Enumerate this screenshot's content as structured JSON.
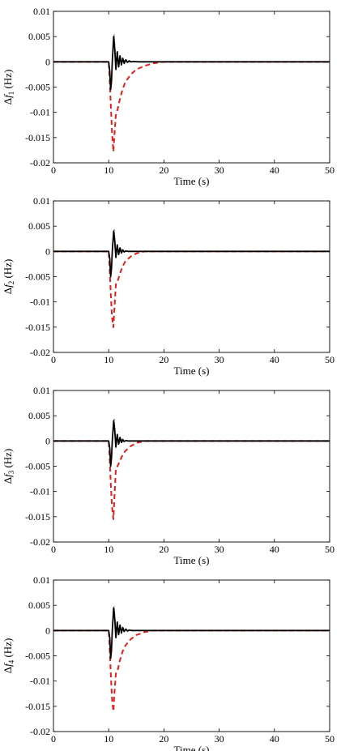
{
  "chart_data": [
    {
      "type": "line",
      "xlabel": "Time (s)",
      "ylabel": {
        "pre": "Δ",
        "var": "f",
        "sub": "1",
        "post": " (Hz)"
      },
      "xlim": [
        0,
        50
      ],
      "ylim": [
        -0.02,
        0.01
      ],
      "xticks": [
        "0",
        "10",
        "20",
        "30",
        "40",
        "50"
      ],
      "yticks": [
        "0.01",
        "0.005",
        "0",
        "-0.005",
        "-0.01",
        "-0.015",
        "-0.02"
      ],
      "grid": false,
      "series": [
        {
          "style": "solid",
          "color": "#000000",
          "x": [
            0,
            10.0,
            10.2,
            10.35,
            10.5,
            10.65,
            10.9,
            11.1,
            11.3,
            11.55,
            11.8,
            12.05,
            12.3,
            12.55,
            12.8,
            13.1,
            13.4,
            13.7,
            14.0,
            14.5,
            15.5,
            50
          ],
          "y": [
            0,
            0,
            -0.002,
            -0.0055,
            -0.004,
            0,
            0.005,
            0.0025,
            -0.0015,
            0.002,
            -0.001,
            0.0012,
            -0.0006,
            0.0007,
            -0.0003,
            0.0004,
            -0.0001,
            0.0002,
            0,
            5e-05,
            0,
            0
          ]
        },
        {
          "style": "dashed",
          "color": "#e0201b",
          "x": [
            0,
            10.0,
            10.2,
            10.4,
            10.6,
            10.85,
            11.0,
            11.3,
            11.6,
            12.0,
            12.5,
            13.0,
            14.0,
            15.0,
            16.5,
            18.0,
            20.0,
            50
          ],
          "y": [
            0,
            0,
            -0.004,
            -0.009,
            -0.014,
            -0.0178,
            -0.015,
            -0.0105,
            -0.0095,
            -0.0075,
            -0.0055,
            -0.004,
            -0.0025,
            -0.0015,
            -0.0008,
            -0.0003,
            0,
            0
          ]
        },
        {
          "style": "dotted",
          "color": "#555555",
          "x": [
            0,
            10.0,
            10.2,
            10.4,
            10.6,
            10.8,
            11.0,
            11.25,
            11.5,
            11.75,
            12.0,
            12.3,
            12.6,
            13.0,
            13.5,
            14.5,
            50
          ],
          "y": [
            0,
            0,
            -0.0025,
            -0.0048,
            -0.002,
            0.003,
            0.0055,
            0.0015,
            0.0018,
            -0.0012,
            0.0009,
            -0.0005,
            0.0004,
            0.0001,
            0,
            0,
            0
          ]
        }
      ]
    },
    {
      "type": "line",
      "xlabel": "Time (s)",
      "ylabel": {
        "pre": "Δ",
        "var": "f",
        "sub": "2",
        "post": " (Hz)"
      },
      "xlim": [
        0,
        50
      ],
      "ylim": [
        -0.02,
        0.01
      ],
      "xticks": [
        "0",
        "10",
        "20",
        "30",
        "40",
        "50"
      ],
      "yticks": [
        "0.01",
        "0.005",
        "0",
        "-0.005",
        "-0.01",
        "-0.015",
        "-0.02"
      ],
      "grid": false,
      "series": [
        {
          "style": "solid",
          "color": "#000000",
          "x": [
            0,
            10.0,
            10.2,
            10.35,
            10.5,
            10.65,
            10.9,
            11.1,
            11.3,
            11.55,
            11.8,
            12.05,
            12.3,
            12.55,
            12.8,
            13.1,
            13.5,
            14.0,
            15.0,
            50
          ],
          "y": [
            0,
            0,
            -0.0015,
            -0.005,
            -0.0035,
            0,
            0.004,
            0.002,
            -0.0012,
            0.0013,
            -0.0006,
            0.0007,
            -0.0003,
            0.0003,
            -0.0001,
            0.0001,
            0,
            0,
            0,
            0
          ]
        },
        {
          "style": "dashed",
          "color": "#e0201b",
          "x": [
            0,
            10.0,
            10.2,
            10.4,
            10.6,
            10.85,
            11.0,
            11.3,
            11.6,
            12.0,
            12.5,
            13.0,
            14.0,
            15.0,
            16.5,
            50
          ],
          "y": [
            0,
            0,
            -0.004,
            -0.009,
            -0.013,
            -0.015,
            -0.012,
            -0.0065,
            -0.006,
            -0.0045,
            -0.003,
            -0.002,
            -0.001,
            -0.0004,
            0,
            0
          ]
        },
        {
          "style": "dotted",
          "color": "#555555",
          "x": [
            0,
            10.0,
            10.2,
            10.4,
            10.6,
            10.8,
            11.0,
            11.25,
            11.5,
            11.8,
            12.2,
            12.6,
            13.2,
            14.0,
            50
          ],
          "y": [
            0,
            0,
            -0.002,
            -0.0045,
            -0.002,
            0.0025,
            0.0045,
            0.0012,
            0.0012,
            -0.0008,
            0.0005,
            -0.0002,
            0.0001,
            0,
            0
          ]
        }
      ]
    },
    {
      "type": "line",
      "xlabel": "Time (s)",
      "ylabel": {
        "pre": "Δ",
        "var": "f",
        "sub": "3",
        "post": " (Hz)"
      },
      "xlim": [
        0,
        50
      ],
      "ylim": [
        -0.02,
        0.01
      ],
      "xticks": [
        "0",
        "10",
        "20",
        "30",
        "40",
        "50"
      ],
      "yticks": [
        "0.01",
        "0.005",
        "0",
        "-0.005",
        "-0.01",
        "-0.015",
        "-0.02"
      ],
      "grid": false,
      "series": [
        {
          "style": "solid",
          "color": "#000000",
          "x": [
            0,
            10.0,
            10.2,
            10.35,
            10.5,
            10.65,
            10.9,
            11.1,
            11.3,
            11.55,
            11.8,
            12.05,
            12.3,
            12.55,
            12.8,
            13.1,
            13.5,
            14.0,
            15.0,
            50
          ],
          "y": [
            0,
            0,
            -0.0015,
            -0.005,
            -0.0035,
            0,
            0.004,
            0.002,
            -0.0012,
            0.0013,
            -0.0006,
            0.0007,
            -0.0003,
            0.0003,
            -0.0001,
            0.0001,
            0,
            0,
            0,
            0
          ]
        },
        {
          "style": "dashed",
          "color": "#e0201b",
          "x": [
            0,
            10.0,
            10.2,
            10.4,
            10.6,
            10.85,
            11.0,
            11.3,
            11.6,
            12.0,
            12.5,
            13.0,
            14.0,
            15.0,
            16.5,
            50
          ],
          "y": [
            0,
            0,
            -0.004,
            -0.009,
            -0.013,
            -0.0155,
            -0.012,
            -0.0055,
            -0.005,
            -0.004,
            -0.0028,
            -0.002,
            -0.001,
            -0.0004,
            0,
            0
          ]
        },
        {
          "style": "dotted",
          "color": "#555555",
          "x": [
            0,
            10.0,
            10.2,
            10.4,
            10.6,
            10.8,
            11.0,
            11.25,
            11.5,
            11.8,
            12.2,
            12.6,
            13.2,
            14.0,
            50
          ],
          "y": [
            0,
            0,
            -0.002,
            -0.0045,
            -0.002,
            0.0025,
            0.0045,
            0.0012,
            0.0012,
            -0.0008,
            0.0005,
            -0.0002,
            0.0001,
            0,
            0
          ]
        }
      ]
    },
    {
      "type": "line",
      "xlabel": "Time (s)",
      "ylabel": {
        "pre": "Δ",
        "var": "f",
        "sub": "4",
        "post": " (Hz)"
      },
      "xlim": [
        0,
        50
      ],
      "ylim": [
        -0.02,
        0.01
      ],
      "xticks": [
        "0",
        "10",
        "20",
        "30",
        "40",
        "50"
      ],
      "yticks": [
        "0.01",
        "0.005",
        "0",
        "-0.005",
        "-0.01",
        "-0.015",
        "-0.02"
      ],
      "grid": false,
      "series": [
        {
          "style": "solid",
          "color": "#000000",
          "x": [
            0,
            10.0,
            10.2,
            10.35,
            10.5,
            10.65,
            10.9,
            11.1,
            11.3,
            11.55,
            11.8,
            12.05,
            12.3,
            12.55,
            12.8,
            13.1,
            13.4,
            13.7,
            14.2,
            15.0,
            50
          ],
          "y": [
            0,
            0,
            -0.0015,
            -0.0055,
            -0.004,
            0,
            0.0045,
            0.0022,
            -0.0014,
            0.0017,
            -0.0008,
            0.0011,
            -0.0005,
            0.0006,
            -0.0002,
            0.0003,
            -0.0001,
            0.0001,
            0,
            0,
            0
          ]
        },
        {
          "style": "dashed",
          "color": "#e0201b",
          "x": [
            0,
            10.0,
            10.2,
            10.4,
            10.6,
            10.85,
            11.0,
            11.3,
            11.6,
            12.0,
            12.5,
            13.0,
            14.0,
            15.0,
            16.5,
            18.0,
            50
          ],
          "y": [
            0,
            0,
            -0.004,
            -0.009,
            -0.0135,
            -0.016,
            -0.013,
            -0.0085,
            -0.008,
            -0.006,
            -0.0042,
            -0.003,
            -0.0017,
            -0.0009,
            -0.0003,
            0,
            0
          ]
        },
        {
          "style": "dotted",
          "color": "#555555",
          "x": [
            0,
            10.0,
            10.2,
            10.4,
            10.6,
            10.8,
            11.0,
            11.25,
            11.5,
            11.75,
            12.0,
            12.3,
            12.6,
            13.0,
            13.5,
            14.5,
            50
          ],
          "y": [
            0,
            0,
            -0.0022,
            -0.0048,
            -0.002,
            0.0028,
            0.0048,
            0.0014,
            0.0016,
            -0.001,
            0.0008,
            -0.0004,
            0.0003,
            0.0001,
            0,
            0,
            0
          ]
        }
      ]
    }
  ]
}
